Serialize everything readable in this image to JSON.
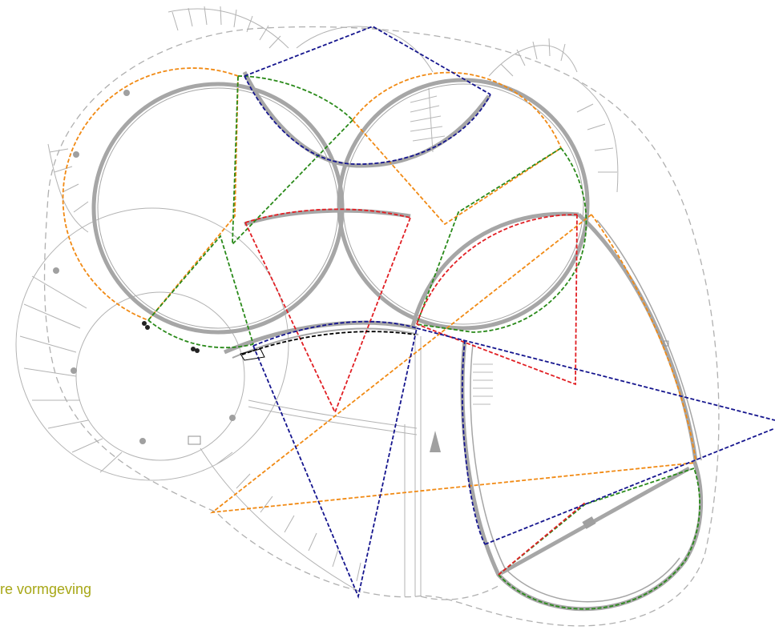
{
  "caption": {
    "text": "re vormgeving"
  },
  "colors": {
    "caption": "#a7a716",
    "orange": "#f18a14",
    "green": "#2a8a1a",
    "red": "#e11f24",
    "navy": "#15158e",
    "wall": "#a6a6a6",
    "black": "#000000"
  }
}
